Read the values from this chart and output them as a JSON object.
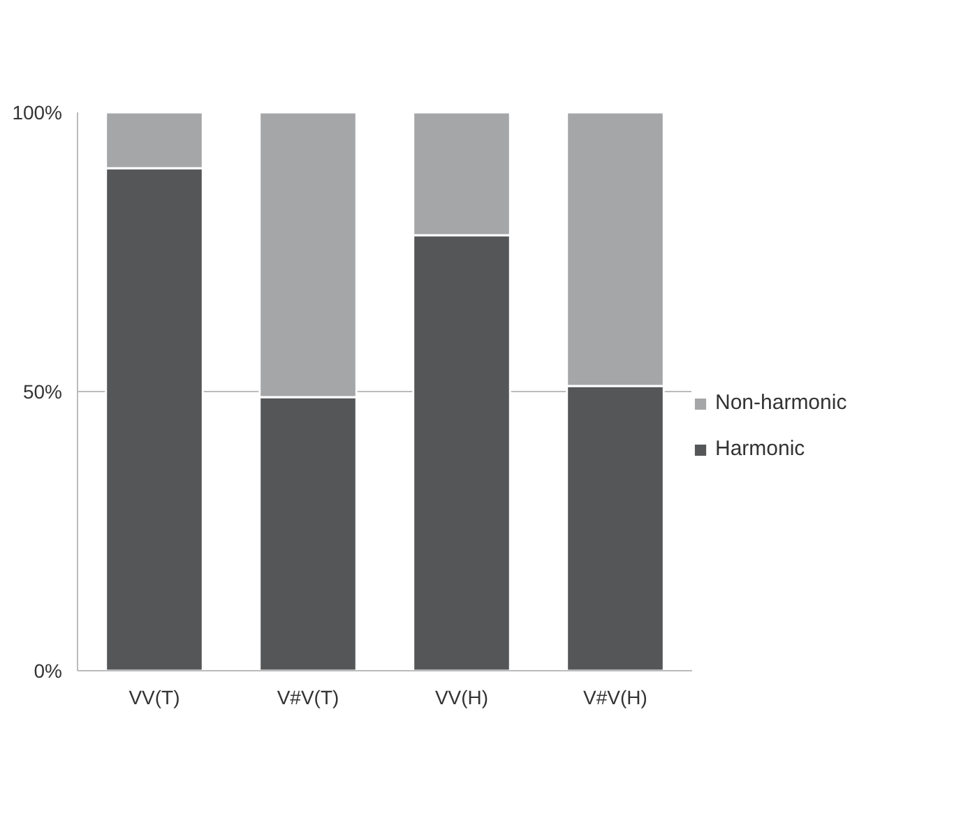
{
  "chart_data": {
    "type": "bar",
    "stacked": true,
    "categories": [
      "VV(T)",
      "V#V(T)",
      "VV(H)",
      "V#V(H)"
    ],
    "series": [
      {
        "name": "Harmonic",
        "color": "#555658",
        "values": [
          90,
          49,
          78,
          51
        ]
      },
      {
        "name": "Non-harmonic",
        "color": "#a5a6a8",
        "values": [
          10,
          51,
          22,
          49
        ]
      }
    ],
    "ylim": [
      0,
      100
    ],
    "yticks": [
      {
        "value": 0,
        "label": "0%"
      },
      {
        "value": 50,
        "label": "50%"
      },
      {
        "value": 100,
        "label": "100%"
      }
    ],
    "grid": "y",
    "legend": "right"
  }
}
